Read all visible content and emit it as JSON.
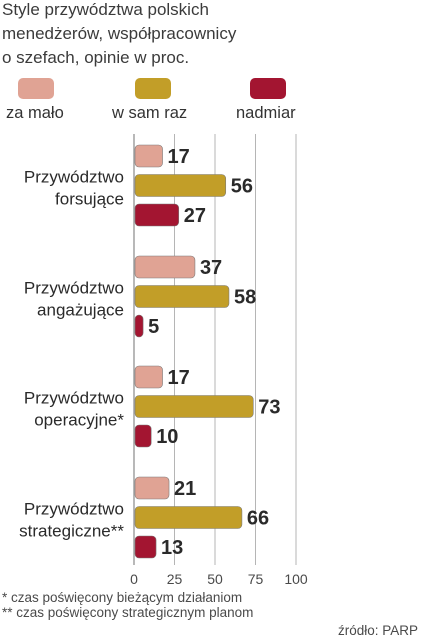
{
  "chart_data": {
    "type": "bar",
    "orientation": "horizontal",
    "title": "Style przywództwa polskich menedżerów, współpracownicy o szefach, opinie w proc.",
    "title_lines": [
      "Style przywództwa polskich",
      "menedżerów, współpracownicy",
      "o szefach, opinie w proc."
    ],
    "categories": [
      [
        "Przywództwo",
        "forsujące"
      ],
      [
        "Przywództwo",
        "angażujące"
      ],
      [
        "Przywództwo",
        "operacyjne*"
      ],
      [
        "Przywództwo",
        "strategiczne**"
      ]
    ],
    "series": [
      {
        "name": "za mało",
        "color": "#e0a394",
        "values": [
          17,
          37,
          17,
          21
        ]
      },
      {
        "name": "w sam raz",
        "color": "#c29e28",
        "values": [
          56,
          58,
          73,
          66
        ]
      },
      {
        "name": "nadmiar",
        "color": "#a31531",
        "values": [
          27,
          5,
          10,
          13
        ]
      }
    ],
    "x_ticks": [
      "0",
      "25",
      "50",
      "75",
      "100"
    ],
    "xlim": [
      0,
      100
    ],
    "grid": true,
    "legend_position": "top"
  },
  "footnotes": [
    "* czas poświęcony bieżącym działaniom",
    "** czas poświęcony strategicznym planom"
  ],
  "source": "źródło: PARP"
}
